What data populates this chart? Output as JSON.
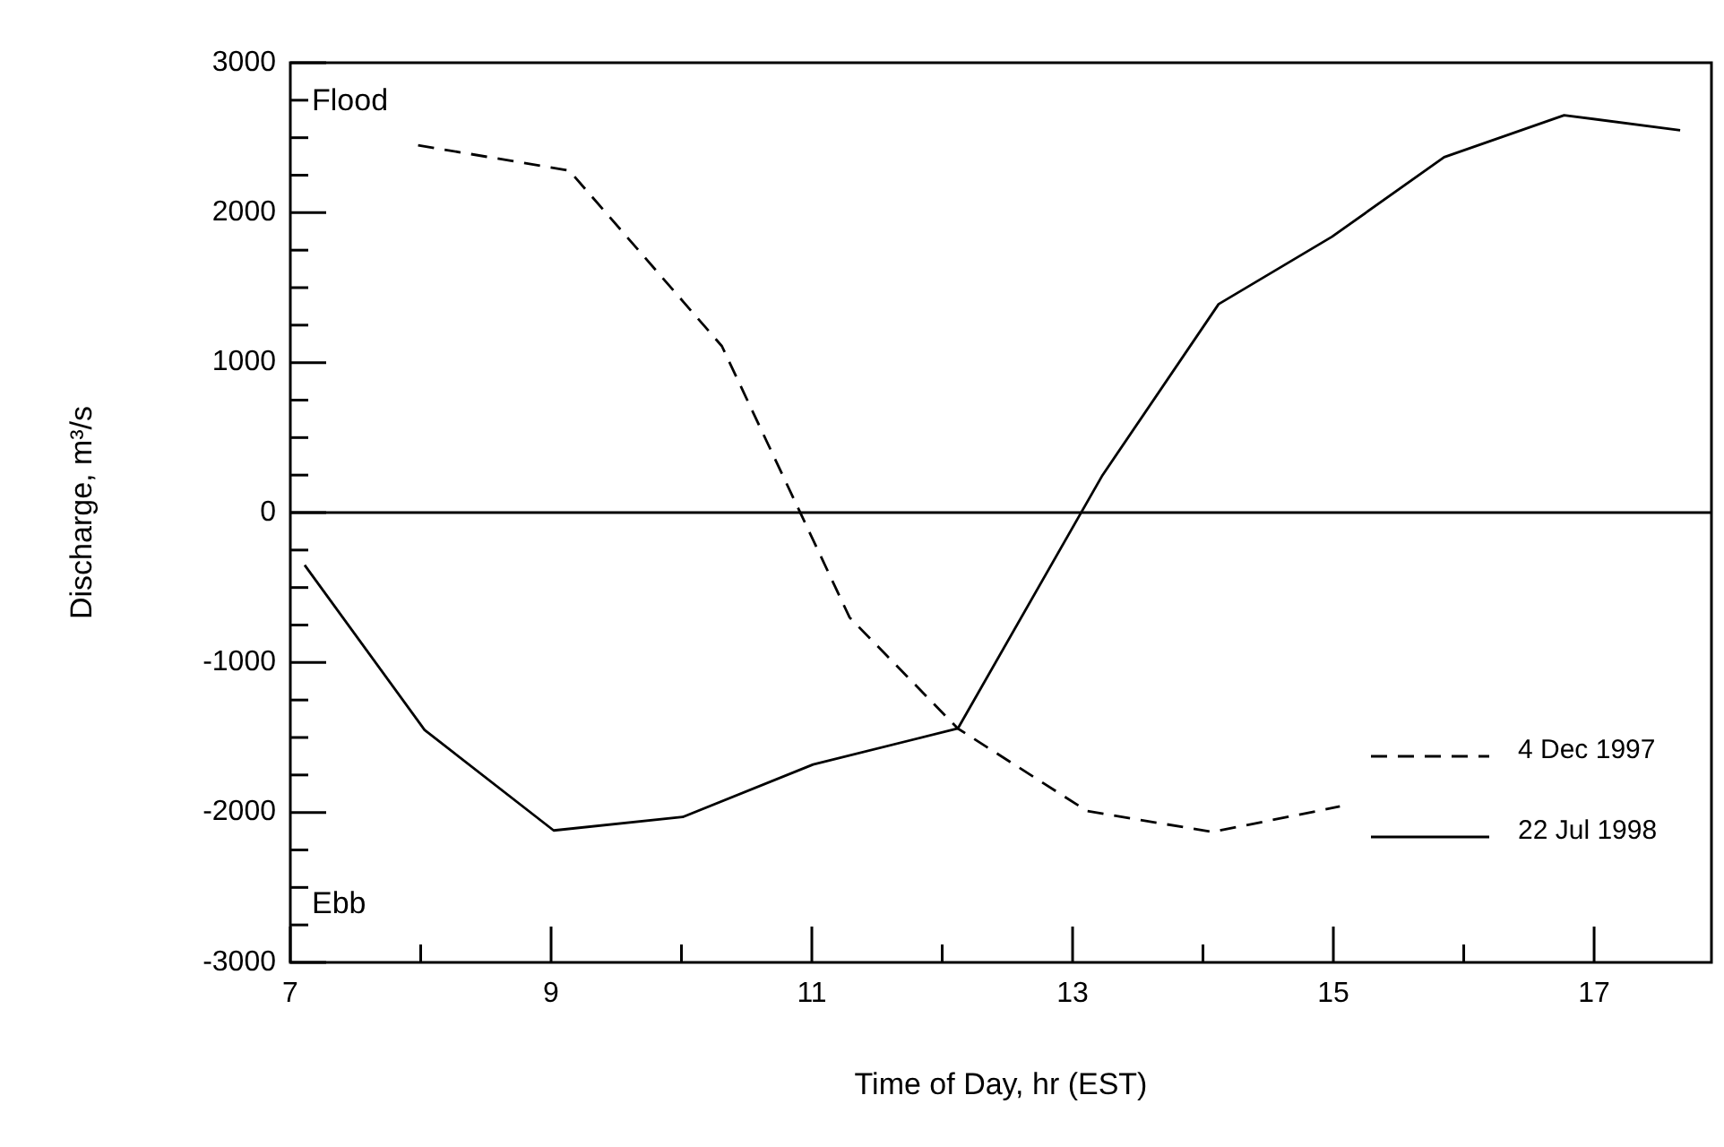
{
  "chart_data": {
    "type": "line",
    "xlabel": "Time of Day, hr (EST)",
    "ylabel": "Discharge, m³/s",
    "annotations": [
      "Flood",
      "Ebb"
    ],
    "xlim": [
      7,
      17.9
    ],
    "xticks": [
      7,
      {
        "value": 8,
        "label": null
      },
      9,
      {
        "value": 10,
        "label": null
      },
      11,
      {
        "value": 12,
        "label": null
      },
      13,
      {
        "value": 14,
        "label": null
      },
      15,
      {
        "value": 16,
        "label": null
      },
      17
    ],
    "ylim": [
      -3000,
      3000
    ],
    "yticks": [
      -3000,
      {
        "value": -2750,
        "label": null
      },
      {
        "value": -2500,
        "label": null
      },
      {
        "value": -2250,
        "label": null
      },
      -2000,
      {
        "value": -1750,
        "label": null
      },
      {
        "value": -1500,
        "label": null
      },
      {
        "value": -1250,
        "label": null
      },
      -1000,
      {
        "value": -750,
        "label": null
      },
      {
        "value": -500,
        "label": null
      },
      {
        "value": -250,
        "label": null
      },
      0,
      {
        "value": 250,
        "label": null
      },
      {
        "value": 500,
        "label": null
      },
      {
        "value": 750,
        "label": null
      },
      1000,
      {
        "value": 1250,
        "label": null
      },
      {
        "value": 1500,
        "label": null
      },
      {
        "value": 1750,
        "label": null
      },
      2000,
      {
        "value": 2250,
        "label": null
      },
      {
        "value": 2500,
        "label": null
      },
      {
        "value": 2750,
        "label": null
      },
      3000
    ],
    "ref_lines": [
      {
        "axis": "y",
        "value": 0,
        "color": "#000000"
      }
    ],
    "legend": "bottom right",
    "marker": "none",
    "series": [
      {
        "name": "4 Dec 1997",
        "color": "#000000",
        "line_style": "dashed",
        "x": [
          7.98,
          9.14,
          10.31,
          11.29,
          12.12,
          13.11,
          14.07,
          15.05
        ],
        "values": [
          2450,
          2280,
          1110,
          -700,
          -1440,
          -1990,
          -2130,
          -1960
        ]
      },
      {
        "name": "22 Jul 1998",
        "color": "#000000",
        "line_style": "solid",
        "x": [
          7.11,
          8.03,
          9.02,
          10.01,
          11.01,
          12.12,
          13.23,
          14.12,
          14.99,
          15.85,
          16.77,
          17.66
        ],
        "values": [
          -350,
          -1450,
          -2120,
          -2030,
          -1680,
          -1440,
          250,
          1390,
          1840,
          2370,
          2650,
          2550
        ]
      }
    ]
  }
}
